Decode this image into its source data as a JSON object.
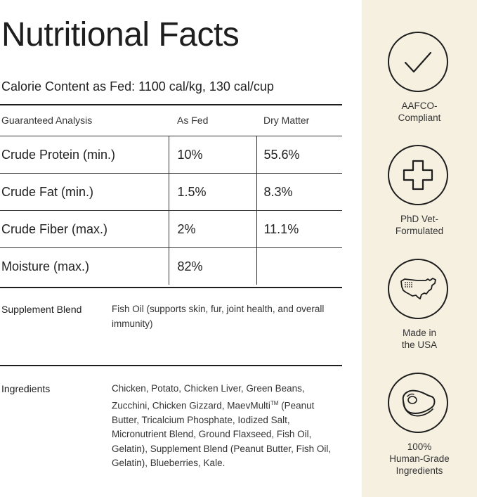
{
  "title": "Nutritional Facts",
  "calorie_content": "Calorie Content as Fed: 1100 cal/kg, 130 cal/cup",
  "analysis": {
    "headers": [
      "Guaranteed Analysis",
      "As Fed",
      "Dry Matter"
    ],
    "rows": [
      {
        "name": "Crude Protein (min.)",
        "as_fed": "10%",
        "dry_matter": "55.6%"
      },
      {
        "name": "Crude Fat (min.)",
        "as_fed": "1.5%",
        "dry_matter": "8.3%"
      },
      {
        "name": "Crude Fiber (max.)",
        "as_fed": "2%",
        "dry_matter": "11.1%"
      },
      {
        "name": "Moisture (max.)",
        "as_fed": "82%",
        "dry_matter": ""
      }
    ]
  },
  "supplement": {
    "label": "Supplement Blend",
    "text": "Fish Oil (supports skin, fur, joint health, and overall immunity)"
  },
  "ingredients": {
    "label": "Ingredients",
    "text_before": "Chicken, Potato, Chicken Liver, Green Beans, Zucchini, Chicken Gizzard, MaevMulti",
    "trademark": "TM",
    "text_after": " (Peanut Butter, Tricalcium Phosphate, Iodized Salt, Micronutrient Blend, Ground Flaxseed, Fish Oil, Gelatin), Supplement Blend (Peanut Butter, Fish Oil, Gelatin), Blueberries, Kale."
  },
  "badges": [
    {
      "icon": "checkmark-icon",
      "line1": "AAFCO-",
      "line2": "Compliant"
    },
    {
      "icon": "medical-cross-icon",
      "line1": "PhD Vet-",
      "line2": "Formulated"
    },
    {
      "icon": "usa-map-icon",
      "line1": "Made in",
      "line2": "the USA"
    },
    {
      "icon": "steak-icon",
      "line1": "100%",
      "line2": "Human-Grade",
      "line3": "Ingredients"
    }
  ],
  "colors": {
    "sidebar_bg": "#f6f0e1",
    "text": "#222222",
    "rule": "#1e1e1e"
  }
}
